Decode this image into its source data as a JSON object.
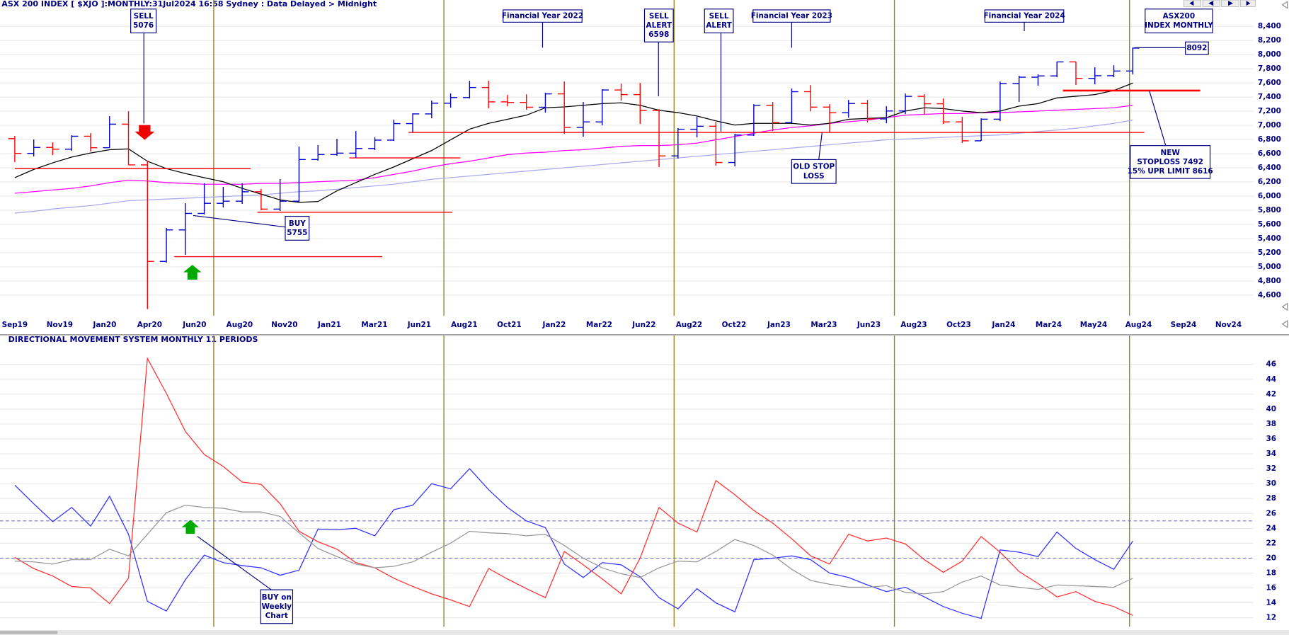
{
  "chart_data": [
    {
      "type": "ohlc",
      "title": "ASX 200 INDEX [ $XJO ]:MONTHLY:31Jul2024 16:58 Sydney : Data Delayed > Midnight",
      "up_color": "#0000cc",
      "down_color": "#ff0000",
      "open": [
        6813,
        6604,
        6688,
        6663,
        6846,
        6684,
        7017,
        6441,
        5077,
        5522,
        5755,
        5898,
        5928,
        6061,
        5816,
        5928,
        6517,
        6587,
        6607,
        6673,
        6791,
        7025,
        7162,
        7313,
        7393,
        7535,
        7332,
        7324,
        7256,
        7445,
        6971,
        7049,
        7500,
        7435,
        7211,
        6568,
        6945,
        6987,
        6475,
        6863,
        7284,
        7039,
        7476,
        7258,
        7178,
        7309,
        7091,
        7203,
        7410,
        7305,
        7049,
        6781,
        7087,
        7591,
        7681,
        7699,
        7897,
        7664,
        7702,
        7768
      ],
      "high": [
        6850,
        6800,
        6760,
        6860,
        6890,
        7130,
        7200,
        6500,
        5550,
        5900,
        6180,
        6130,
        6180,
        6100,
        6240,
        6700,
        6720,
        6810,
        6920,
        6830,
        7080,
        7170,
        7350,
        7450,
        7630,
        7630,
        7430,
        7440,
        7460,
        7620,
        7330,
        7510,
        7590,
        7600,
        7230,
        6960,
        7120,
        7050,
        6880,
        7300,
        7330,
        7520,
        7570,
        7300,
        7360,
        7360,
        7270,
        7450,
        7440,
        7380,
        7120,
        7100,
        7620,
        7700,
        7720,
        7900,
        7900,
        7820,
        7850,
        8100
      ],
      "low": [
        6480,
        6560,
        6580,
        6640,
        6630,
        6680,
        6440,
        4402,
        5060,
        5170,
        5740,
        5840,
        5890,
        5800,
        5790,
        5920,
        6500,
        6570,
        6540,
        6650,
        6780,
        6900,
        7100,
        7250,
        7380,
        7240,
        7270,
        7220,
        7180,
        6880,
        6840,
        7000,
        7350,
        7020,
        6410,
        6530,
        6830,
        6430,
        6420,
        6850,
        6920,
        7030,
        7200,
        6900,
        7110,
        7040,
        7030,
        7160,
        7150,
        7020,
        6750,
        6780,
        7060,
        7330,
        7560,
        7680,
        7570,
        7580,
        7680,
        7720
      ],
      "close": [
        6604,
        6688,
        6663,
        6846,
        6684,
        7017,
        6441,
        5077,
        5522,
        5755,
        5898,
        5928,
        6061,
        5816,
        5928,
        6517,
        6587,
        6607,
        6673,
        6791,
        7025,
        7162,
        7313,
        7393,
        7535,
        7332,
        7324,
        7256,
        7445,
        6971,
        7049,
        7500,
        7435,
        7211,
        6568,
        6945,
        6987,
        6475,
        6863,
        7284,
        7039,
        7476,
        7258,
        7178,
        7309,
        7091,
        7203,
        7410,
        7305,
        7049,
        6781,
        7087,
        7591,
        7681,
        7699,
        7897,
        7664,
        7702,
        7768,
        8092
      ],
      "lines": [
        {
          "color": "#aaaaee",
          "values": [
            5760,
            5784,
            5819,
            5842,
            5865,
            5900,
            5935,
            5947,
            5958,
            5970,
            5981,
            5993,
            6005,
            6016,
            6040,
            6063,
            6074,
            6098,
            6121,
            6144,
            6167,
            6202,
            6237,
            6260,
            6284,
            6307,
            6330,
            6353,
            6377,
            6400,
            6423,
            6447,
            6470,
            6493,
            6516,
            6540,
            6563,
            6586,
            6609,
            6633,
            6656,
            6679,
            6702,
            6726,
            6749,
            6772,
            6795,
            6807,
            6819,
            6830,
            6842,
            6853,
            6865,
            6888,
            6912,
            6935,
            6958,
            6993,
            7028,
            7074
          ]
        },
        {
          "color": "#ff00ff",
          "values": [
            6040,
            6063,
            6086,
            6109,
            6144,
            6191,
            6226,
            6214,
            6191,
            6179,
            6167,
            6167,
            6167,
            6179,
            6179,
            6191,
            6202,
            6214,
            6226,
            6260,
            6307,
            6353,
            6412,
            6458,
            6493,
            6540,
            6586,
            6609,
            6621,
            6644,
            6656,
            6679,
            6702,
            6714,
            6714,
            6726,
            6749,
            6795,
            6842,
            6888,
            6935,
            6970,
            6993,
            7028,
            7051,
            7074,
            7109,
            7144,
            7156,
            7167,
            7167,
            7179,
            7179,
            7191,
            7202,
            7214,
            7226,
            7237,
            7249,
            7284
          ]
        },
        {
          "color": "#000000",
          "values": [
            6260,
            6377,
            6470,
            6551,
            6609,
            6656,
            6667,
            6493,
            6388,
            6319,
            6260,
            6202,
            6109,
            6028,
            5947,
            5912,
            5923,
            6074,
            6191,
            6307,
            6412,
            6528,
            6644,
            6795,
            6946,
            7028,
            7086,
            7144,
            7249,
            7260,
            7284,
            7307,
            7319,
            7284,
            7214,
            7179,
            7133,
            7063,
            7005,
            7028,
            7028,
            7028,
            7005,
            7028,
            7086,
            7098,
            7109,
            7202,
            7249,
            7237,
            7202,
            7179,
            7202,
            7272,
            7307,
            7388,
            7412,
            7435,
            7493,
            7598
          ]
        }
      ],
      "levels": [
        {
          "value": 6388,
          "color": "#ff0000"
        },
        {
          "value": 6540,
          "color": "#ff0000"
        },
        {
          "value": 5772,
          "color": "#ff0000"
        },
        {
          "value": 5144,
          "color": "#ff0000"
        },
        {
          "value": 6900,
          "color": "#ff0000"
        },
        {
          "value": 7492,
          "color": "#ff0000"
        }
      ],
      "ylim": [
        4300,
        8650
      ],
      "yticks": [
        {
          "value": 4600,
          "label": "4,600"
        },
        {
          "value": 4800,
          "label": "4,800"
        },
        {
          "value": 5000,
          "label": "5,000"
        },
        {
          "value": 5200,
          "label": "5,200"
        },
        {
          "value": 5400,
          "label": "5,400"
        },
        {
          "value": 5600,
          "label": "5,600"
        },
        {
          "value": 5800,
          "label": "5,800"
        },
        {
          "value": 6000,
          "label": "6,000"
        },
        {
          "value": 6200,
          "label": "6,200"
        },
        {
          "value": 6400,
          "label": "6,400"
        },
        {
          "value": 6600,
          "label": "6,600"
        },
        {
          "value": 6800,
          "label": "6,800"
        },
        {
          "value": 7000,
          "label": "7,000"
        },
        {
          "value": 7200,
          "label": "7,200"
        },
        {
          "value": 7400,
          "label": "7,400"
        },
        {
          "value": 7600,
          "label": "7,600"
        },
        {
          "value": 7800,
          "label": "7,800"
        },
        {
          "value": 8000,
          "label": "8,000"
        },
        {
          "value": 8200,
          "label": "8,200"
        },
        {
          "value": 8400,
          "label": "8,400"
        }
      ],
      "grid": true,
      "x_labels": [
        "Sep19",
        "Nov19",
        "Jan20",
        "Apr20",
        "Jun20",
        "Aug20",
        "Nov20",
        "Jan21",
        "Mar21",
        "Jun21",
        "Aug21",
        "Oct21",
        "Jan22",
        "Mar22",
        "Jun22",
        "Aug22",
        "Oct22",
        "Jan23",
        "Mar23",
        "Jun23",
        "Aug23",
        "Oct23",
        "Jan24",
        "Mar24",
        "May24",
        "Aug24",
        "Sep24",
        "Nov24"
      ],
      "annotations": [
        {
          "lines": [
            "SELL",
            "5076"
          ]
        },
        {
          "lines": [
            "Financial Year 2022"
          ]
        },
        {
          "lines": [
            "SELL",
            "ALERT",
            "6598"
          ]
        },
        {
          "lines": [
            "SELL",
            "ALERT"
          ]
        },
        {
          "lines": [
            "Financial Year 2023"
          ]
        },
        {
          "lines": [
            "Financial Year 2024"
          ]
        },
        {
          "lines": [
            "ASX200",
            "INDEX MONTHLY"
          ]
        },
        {
          "lines": [
            "8092"
          ]
        },
        {
          "lines": [
            "BUY",
            "5755"
          ]
        },
        {
          "lines": [
            "OLD STOP",
            "LOSS"
          ]
        },
        {
          "lines": [
            "NEW",
            "STOPLOSS 7492",
            "15% UPR LIMIT 8616"
          ]
        }
      ]
    },
    {
      "type": "line",
      "title": "DIRECTIONAL MOVEMENT SYSTEM MONTHLY 11 PERIODS",
      "series": [
        {
          "color": "#3333ff",
          "values": [
            29.8,
            27.3,
            24.9,
            26.8,
            24.3,
            28.3,
            23.2,
            14.2,
            12.9,
            17.1,
            20.4,
            19.4,
            19.0,
            18.7,
            17.7,
            18.4,
            23.9,
            23.8,
            24.0,
            23.0,
            26.5,
            27.1,
            30.0,
            29.3,
            32.0,
            29.2,
            26.8,
            25.0,
            24.1,
            19.2,
            17.4,
            19.4,
            19.1,
            17.5,
            14.7,
            13.2,
            15.9,
            14.0,
            12.8,
            19.8,
            20.0,
            20.3,
            19.8,
            18.0,
            17.4,
            16.4,
            15.5,
            16.1,
            14.8,
            13.5,
            12.6,
            11.9,
            21.1,
            20.8,
            20.2,
            23.5,
            21.3,
            19.8,
            18.5,
            22.3
          ]
        },
        {
          "color": "#ff3333",
          "values": [
            20.1,
            18.6,
            17.6,
            16.2,
            16.0,
            13.9,
            17.3,
            46.8,
            42.1,
            37.0,
            33.9,
            32.3,
            30.2,
            29.9,
            27.3,
            23.6,
            22.2,
            21.2,
            19.4,
            18.7,
            17.3,
            16.2,
            15.2,
            14.4,
            13.5,
            18.6,
            17.2,
            15.9,
            14.7,
            20.9,
            19.1,
            17.2,
            15.2,
            20.0,
            26.8,
            24.7,
            23.5,
            30.4,
            28.5,
            26.4,
            24.7,
            22.6,
            20.3,
            19.2,
            23.2,
            22.3,
            22.7,
            21.9,
            19.8,
            18.1,
            19.6,
            22.9,
            20.8,
            18.2,
            16.6,
            14.8,
            15.5,
            14.2,
            13.5,
            12.3
          ]
        },
        {
          "color": "#999999",
          "values": [
            19.6,
            19.5,
            19.2,
            19.8,
            19.8,
            21.2,
            20.3,
            23.2,
            26.1,
            27.1,
            26.8,
            26.7,
            26.2,
            26.2,
            25.6,
            23.4,
            21.3,
            20.2,
            19.2,
            18.7,
            18.9,
            19.5,
            20.8,
            22.0,
            23.6,
            23.4,
            23.3,
            23.0,
            23.2,
            21.7,
            20.0,
            18.7,
            17.9,
            17.4,
            18.7,
            19.6,
            19.5,
            20.9,
            22.5,
            21.7,
            20.4,
            18.5,
            17.0,
            16.5,
            16.1,
            16.1,
            16.3,
            15.4,
            15.2,
            15.5,
            16.8,
            17.6,
            16.4,
            16.1,
            15.8,
            16.4,
            16.3,
            16.2,
            16.1,
            17.3
          ]
        }
      ],
      "reference_lines": [
        25,
        20
      ],
      "ylim": [
        11,
        47.5
      ],
      "yticks": [
        12,
        14,
        16,
        18,
        20,
        22,
        24,
        26,
        28,
        30,
        32,
        34,
        36,
        38,
        40,
        42,
        44,
        46
      ],
      "grid": true,
      "annotations": [
        {
          "lines": [
            "BUY on",
            "Weekly",
            "Chart"
          ]
        }
      ]
    }
  ]
}
